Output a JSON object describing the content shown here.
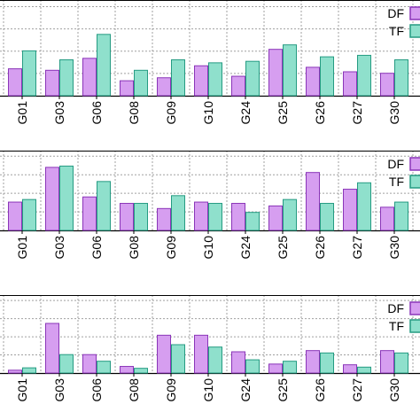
{
  "colors": {
    "df": "#d69ef0",
    "df_stroke": "#8a35b8",
    "tf": "#8fe0cc",
    "tf_stroke": "#259b82",
    "grid": "#a0a0a0",
    "axis": "#000000"
  },
  "chart_data": [
    {
      "type": "bar",
      "categories": [
        "G01",
        "G03",
        "G06",
        "G08",
        "G09",
        "G10",
        "G24",
        "G25",
        "G26",
        "G27",
        "G30"
      ],
      "series": [
        {
          "name": "DF",
          "values": [
            0.9,
            0.85,
            1.25,
            0.5,
            0.6,
            1.0,
            0.65,
            1.55,
            0.95,
            0.8,
            0.75
          ]
        },
        {
          "name": "TF",
          "values": [
            1.5,
            1.2,
            2.05,
            0.85,
            1.2,
            1.1,
            1.15,
            1.7,
            1.3,
            1.35,
            1.2
          ]
        }
      ],
      "legend": "top-right",
      "grid": true,
      "ylim": [
        0,
        3.2
      ]
    },
    {
      "type": "bar",
      "categories": [
        "G01",
        "G03",
        "G06",
        "G08",
        "G09",
        "G10",
        "G24",
        "G25",
        "G26",
        "G27",
        "G30"
      ],
      "series": [
        {
          "name": "DF",
          "values": [
            1.1,
            2.45,
            1.3,
            1.05,
            0.85,
            1.1,
            1.05,
            0.95,
            2.25,
            1.6,
            0.9
          ]
        },
        {
          "name": "TF",
          "values": [
            1.2,
            2.5,
            1.9,
            1.05,
            1.35,
            1.05,
            0.7,
            1.2,
            1.05,
            1.85,
            1.1
          ]
        }
      ],
      "legend": "top-right",
      "grid": true,
      "ylim": [
        0,
        3.1
      ]
    },
    {
      "type": "bar",
      "categories": [
        "G01",
        "G03",
        "G06",
        "G08",
        "G09",
        "G10",
        "G24",
        "G25",
        "G26",
        "G27",
        "G30"
      ],
      "series": [
        {
          "name": "DF",
          "values": [
            0.12,
            2.1,
            0.78,
            0.28,
            1.6,
            1.6,
            0.9,
            0.38,
            0.95,
            0.35,
            0.95
          ]
        },
        {
          "name": "TF",
          "values": [
            0.22,
            0.78,
            0.5,
            0.2,
            1.2,
            1.1,
            0.56,
            0.5,
            0.85,
            0.25,
            0.85
          ]
        }
      ],
      "legend": "top-right",
      "grid": true,
      "ylim": [
        0,
        3.3
      ]
    }
  ]
}
